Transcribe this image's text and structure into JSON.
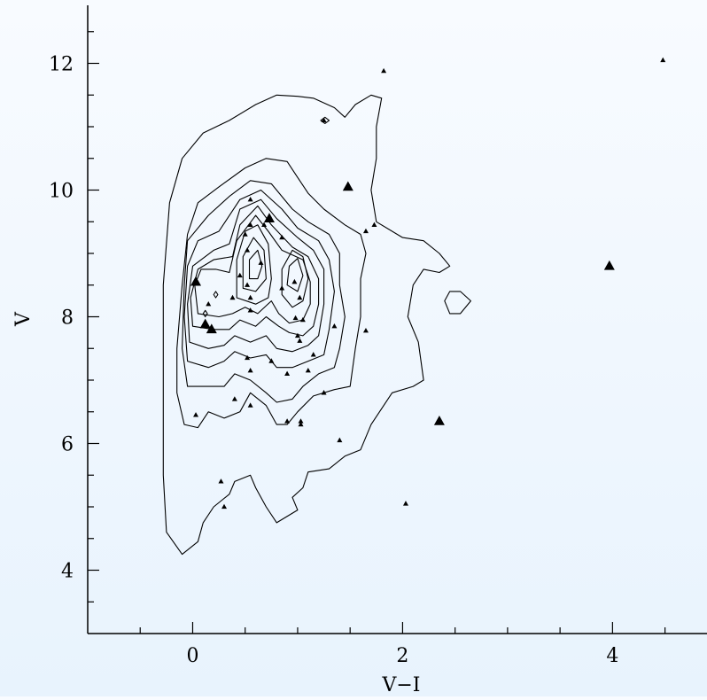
{
  "chart_data": {
    "type": "scatter",
    "xlabel": "V−I",
    "ylabel": "V",
    "xlim": [
      -1.0,
      4.9
    ],
    "ylim": [
      3.0,
      13.0
    ],
    "xticks_major": [
      0,
      2,
      4
    ],
    "xtick_labels": [
      "0",
      "2",
      "4"
    ],
    "xticks_minor": [
      -0.5,
      0.5,
      1.0,
      1.5,
      2.5,
      3.0,
      3.5,
      4.5
    ],
    "yticks_major": [
      4,
      6,
      8,
      10,
      12
    ],
    "ytick_labels": [
      "4",
      "6",
      "8",
      "10",
      "12"
    ],
    "yticks_minor": [
      3.5,
      4.5,
      5.0,
      5.5,
      6.5,
      7.0,
      7.5,
      8.5,
      9.0,
      9.5,
      10.5,
      11.0,
      11.5,
      12.5
    ],
    "grid": false,
    "legend": "none",
    "contours": [
      [
        [
          -0.1,
          4.25
        ],
        [
          -0.25,
          4.6
        ],
        [
          -0.28,
          5.5
        ],
        [
          -0.28,
          7.0
        ],
        [
          -0.28,
          8.5
        ],
        [
          -0.22,
          9.8
        ],
        [
          -0.1,
          10.5
        ],
        [
          0.1,
          10.9
        ],
        [
          0.35,
          11.1
        ],
        [
          0.6,
          11.35
        ],
        [
          0.8,
          11.5
        ],
        [
          1.0,
          11.48
        ],
        [
          1.15,
          11.45
        ],
        [
          1.35,
          11.3
        ],
        [
          1.45,
          11.15
        ],
        [
          1.55,
          11.35
        ],
        [
          1.7,
          11.5
        ],
        [
          1.8,
          11.45
        ],
        [
          1.75,
          11.0
        ],
        [
          1.75,
          10.5
        ],
        [
          1.7,
          10.0
        ],
        [
          1.75,
          9.5
        ],
        [
          2.0,
          9.25
        ],
        [
          2.2,
          9.2
        ],
        [
          2.35,
          9.0
        ],
        [
          2.45,
          8.8
        ],
        [
          2.35,
          8.7
        ],
        [
          2.2,
          8.75
        ],
        [
          2.1,
          8.5
        ],
        [
          2.05,
          8.0
        ],
        [
          2.15,
          7.6
        ],
        [
          2.2,
          7.0
        ],
        [
          2.1,
          6.9
        ],
        [
          1.9,
          6.8
        ],
        [
          1.7,
          6.3
        ],
        [
          1.6,
          5.9
        ],
        [
          1.45,
          5.8
        ],
        [
          1.3,
          5.6
        ],
        [
          1.1,
          5.55
        ],
        [
          1.05,
          5.3
        ],
        [
          0.95,
          5.15
        ],
        [
          1.0,
          4.95
        ],
        [
          0.8,
          4.75
        ],
        [
          0.7,
          5.0
        ],
        [
          0.6,
          5.3
        ],
        [
          0.55,
          5.5
        ],
        [
          0.4,
          5.4
        ],
        [
          0.35,
          5.2
        ],
        [
          0.2,
          5.0
        ],
        [
          0.1,
          4.75
        ],
        [
          0.05,
          4.45
        ],
        [
          -0.1,
          4.25
        ]
      ],
      [
        [
          -0.08,
          6.3
        ],
        [
          -0.15,
          6.8
        ],
        [
          -0.15,
          7.5
        ],
        [
          -0.1,
          8.5
        ],
        [
          -0.05,
          9.3
        ],
        [
          0.05,
          9.8
        ],
        [
          0.25,
          10.05
        ],
        [
          0.5,
          10.35
        ],
        [
          0.7,
          10.5
        ],
        [
          0.9,
          10.45
        ],
        [
          1.0,
          10.2
        ],
        [
          1.1,
          9.95
        ],
        [
          1.25,
          9.7
        ],
        [
          1.45,
          9.45
        ],
        [
          1.6,
          9.3
        ],
        [
          1.65,
          9.0
        ],
        [
          1.6,
          8.6
        ],
        [
          1.6,
          8.0
        ],
        [
          1.55,
          7.5
        ],
        [
          1.5,
          6.9
        ],
        [
          1.35,
          6.85
        ],
        [
          1.15,
          6.75
        ],
        [
          1.0,
          6.5
        ],
        [
          0.9,
          6.3
        ],
        [
          0.8,
          6.3
        ],
        [
          0.7,
          6.6
        ],
        [
          0.55,
          6.8
        ],
        [
          0.45,
          6.5
        ],
        [
          0.3,
          6.4
        ],
        [
          0.15,
          6.5
        ],
        [
          0.05,
          6.25
        ],
        [
          -0.08,
          6.3
        ]
      ],
      [
        [
          -0.05,
          6.9
        ],
        [
          -0.1,
          7.5
        ],
        [
          -0.08,
          8.5
        ],
        [
          -0.05,
          9.2
        ],
        [
          0.15,
          9.6
        ],
        [
          0.35,
          9.9
        ],
        [
          0.55,
          10.15
        ],
        [
          0.75,
          10.1
        ],
        [
          0.95,
          9.7
        ],
        [
          1.1,
          9.5
        ],
        [
          1.3,
          9.3
        ],
        [
          1.4,
          9.0
        ],
        [
          1.4,
          8.5
        ],
        [
          1.45,
          8.0
        ],
        [
          1.4,
          7.5
        ],
        [
          1.35,
          7.2
        ],
        [
          1.2,
          7.1
        ],
        [
          1.05,
          6.9
        ],
        [
          0.95,
          6.7
        ],
        [
          0.8,
          6.65
        ],
        [
          0.7,
          6.8
        ],
        [
          0.55,
          7.0
        ],
        [
          0.4,
          7.1
        ],
        [
          0.3,
          6.9
        ],
        [
          0.15,
          6.9
        ],
        [
          -0.05,
          6.9
        ]
      ],
      [
        [
          -0.05,
          7.3
        ],
        [
          -0.08,
          8.0
        ],
        [
          -0.05,
          8.8
        ],
        [
          0.05,
          9.2
        ],
        [
          0.25,
          9.35
        ],
        [
          0.45,
          9.85
        ],
        [
          0.65,
          10.0
        ],
        [
          0.85,
          9.7
        ],
        [
          1.0,
          9.4
        ],
        [
          1.2,
          9.2
        ],
        [
          1.3,
          8.9
        ],
        [
          1.35,
          8.4
        ],
        [
          1.3,
          7.8
        ],
        [
          1.25,
          7.4
        ],
        [
          1.1,
          7.3
        ],
        [
          0.95,
          7.2
        ],
        [
          0.8,
          7.2
        ],
        [
          0.7,
          7.4
        ],
        [
          0.55,
          7.35
        ],
        [
          0.4,
          7.45
        ],
        [
          0.3,
          7.3
        ],
        [
          0.15,
          7.2
        ],
        [
          -0.05,
          7.3
        ]
      ],
      [
        [
          -0.03,
          7.6
        ],
        [
          -0.05,
          8.2
        ],
        [
          0.0,
          8.8
        ],
        [
          0.2,
          9.05
        ],
        [
          0.35,
          9.15
        ],
        [
          0.45,
          9.7
        ],
        [
          0.65,
          9.85
        ],
        [
          0.8,
          9.55
        ],
        [
          1.0,
          9.25
        ],
        [
          1.15,
          9.05
        ],
        [
          1.25,
          8.75
        ],
        [
          1.25,
          8.2
        ],
        [
          1.2,
          7.7
        ],
        [
          1.1,
          7.55
        ],
        [
          0.95,
          7.45
        ],
        [
          0.8,
          7.5
        ],
        [
          0.7,
          7.7
        ],
        [
          0.55,
          7.6
        ],
        [
          0.4,
          7.7
        ],
        [
          0.3,
          7.55
        ],
        [
          0.15,
          7.5
        ],
        [
          -0.03,
          7.6
        ]
      ],
      [
        [
          0.0,
          7.85
        ],
        [
          -0.02,
          8.3
        ],
        [
          0.05,
          8.75
        ],
        [
          0.2,
          8.9
        ],
        [
          0.38,
          8.95
        ],
        [
          0.45,
          9.45
        ],
        [
          0.62,
          9.75
        ],
        [
          0.75,
          9.45
        ],
        [
          0.95,
          9.1
        ],
        [
          1.1,
          8.95
        ],
        [
          1.2,
          8.6
        ],
        [
          1.2,
          8.2
        ],
        [
          1.15,
          7.85
        ],
        [
          1.05,
          7.7
        ],
        [
          0.92,
          7.75
        ],
        [
          0.82,
          7.85
        ],
        [
          0.7,
          8.0
        ],
        [
          0.6,
          7.85
        ],
        [
          0.45,
          7.95
        ],
        [
          0.35,
          7.8
        ],
        [
          0.2,
          7.8
        ],
        [
          0.0,
          7.85
        ]
      ],
      [
        [
          0.05,
          8.05
        ],
        [
          0.02,
          8.5
        ],
        [
          0.08,
          8.75
        ],
        [
          0.22,
          8.75
        ],
        [
          0.35,
          8.7
        ],
        [
          0.42,
          9.2
        ],
        [
          0.6,
          9.6
        ],
        [
          0.72,
          9.35
        ],
        [
          0.85,
          9.05
        ],
        [
          1.05,
          8.9
        ],
        [
          1.12,
          8.55
        ],
        [
          1.12,
          8.2
        ],
        [
          1.05,
          7.95
        ],
        [
          0.92,
          7.9
        ],
        [
          0.82,
          8.05
        ],
        [
          0.75,
          8.25
        ],
        [
          0.62,
          8.05
        ],
        [
          0.5,
          8.15
        ],
        [
          0.38,
          8.05
        ],
        [
          0.25,
          8.0
        ],
        [
          0.05,
          8.05
        ]
      ],
      [
        [
          0.42,
          8.3
        ],
        [
          0.42,
          8.9
        ],
        [
          0.5,
          9.35
        ],
        [
          0.62,
          9.45
        ],
        [
          0.72,
          9.15
        ],
        [
          0.75,
          8.6
        ],
        [
          0.72,
          8.3
        ],
        [
          0.6,
          8.2
        ],
        [
          0.42,
          8.3
        ]
      ],
      [
        [
          0.48,
          8.45
        ],
        [
          0.48,
          8.95
        ],
        [
          0.58,
          9.25
        ],
        [
          0.68,
          9.05
        ],
        [
          0.7,
          8.6
        ],
        [
          0.6,
          8.4
        ],
        [
          0.48,
          8.45
        ]
      ],
      [
        [
          0.54,
          8.6
        ],
        [
          0.54,
          8.9
        ],
        [
          0.62,
          9.05
        ],
        [
          0.66,
          8.8
        ],
        [
          0.62,
          8.6
        ],
        [
          0.54,
          8.6
        ]
      ],
      [
        [
          0.85,
          8.35
        ],
        [
          0.85,
          8.75
        ],
        [
          0.95,
          9.05
        ],
        [
          1.05,
          8.95
        ],
        [
          1.1,
          8.6
        ],
        [
          1.05,
          8.25
        ],
        [
          0.95,
          8.15
        ],
        [
          0.85,
          8.35
        ]
      ],
      [
        [
          0.9,
          8.5
        ],
        [
          0.92,
          8.8
        ],
        [
          1.0,
          8.92
        ],
        [
          1.05,
          8.65
        ],
        [
          1.0,
          8.4
        ],
        [
          0.9,
          8.5
        ]
      ],
      [
        [
          2.4,
          8.25
        ],
        [
          2.45,
          8.4
        ],
        [
          2.55,
          8.4
        ],
        [
          2.65,
          8.25
        ],
        [
          2.55,
          8.05
        ],
        [
          2.45,
          8.05
        ],
        [
          2.4,
          8.25
        ]
      ],
      [
        [
          1.22,
          11.1
        ],
        [
          1.26,
          11.15
        ],
        [
          1.3,
          11.1
        ],
        [
          1.26,
          11.05
        ],
        [
          1.22,
          11.1
        ]
      ],
      [
        [
          0.1,
          8.05
        ],
        [
          0.12,
          8.1
        ],
        [
          0.14,
          8.05
        ],
        [
          0.12,
          8.0
        ],
        [
          0.1,
          8.05
        ]
      ],
      [
        [
          0.2,
          8.35
        ],
        [
          0.22,
          8.4
        ],
        [
          0.24,
          8.35
        ],
        [
          0.22,
          8.3
        ],
        [
          0.2,
          8.35
        ]
      ]
    ],
    "points_large": [
      [
        0.03,
        8.55
      ],
      [
        0.12,
        7.88
      ],
      [
        0.18,
        7.8
      ],
      [
        0.73,
        9.55
      ],
      [
        1.48,
        10.05
      ],
      [
        2.35,
        6.35
      ],
      [
        3.97,
        8.8
      ]
    ],
    "points_small": [
      [
        1.82,
        11.88
      ],
      [
        4.48,
        12.05
      ],
      [
        1.25,
        11.1
      ],
      [
        0.55,
        9.85
      ],
      [
        0.55,
        9.45
      ],
      [
        0.68,
        9.45
      ],
      [
        0.5,
        9.3
      ],
      [
        0.85,
        9.25
      ],
      [
        1.65,
        9.35
      ],
      [
        1.73,
        9.45
      ],
      [
        0.52,
        9.05
      ],
      [
        0.65,
        8.85
      ],
      [
        0.45,
        8.65
      ],
      [
        0.52,
        8.5
      ],
      [
        0.55,
        8.3
      ],
      [
        0.38,
        8.3
      ],
      [
        0.15,
        8.2
      ],
      [
        0.55,
        8.1
      ],
      [
        0.85,
        8.45
      ],
      [
        0.97,
        8.55
      ],
      [
        1.02,
        8.3
      ],
      [
        0.98,
        7.98
      ],
      [
        1.05,
        7.95
      ],
      [
        1.35,
        7.85
      ],
      [
        1.65,
        7.78
      ],
      [
        1.0,
        7.7
      ],
      [
        1.02,
        7.62
      ],
      [
        1.15,
        7.4
      ],
      [
        0.52,
        7.35
      ],
      [
        0.55,
        7.15
      ],
      [
        0.75,
        7.3
      ],
      [
        1.1,
        7.15
      ],
      [
        0.9,
        7.1
      ],
      [
        1.25,
        6.8
      ],
      [
        0.4,
        6.7
      ],
      [
        0.55,
        6.6
      ],
      [
        0.03,
        6.45
      ],
      [
        0.9,
        6.35
      ],
      [
        1.03,
        6.35
      ],
      [
        1.03,
        6.3
      ],
      [
        1.4,
        6.05
      ],
      [
        0.27,
        5.4
      ],
      [
        0.3,
        5.0
      ],
      [
        2.03,
        5.05
      ]
    ]
  }
}
